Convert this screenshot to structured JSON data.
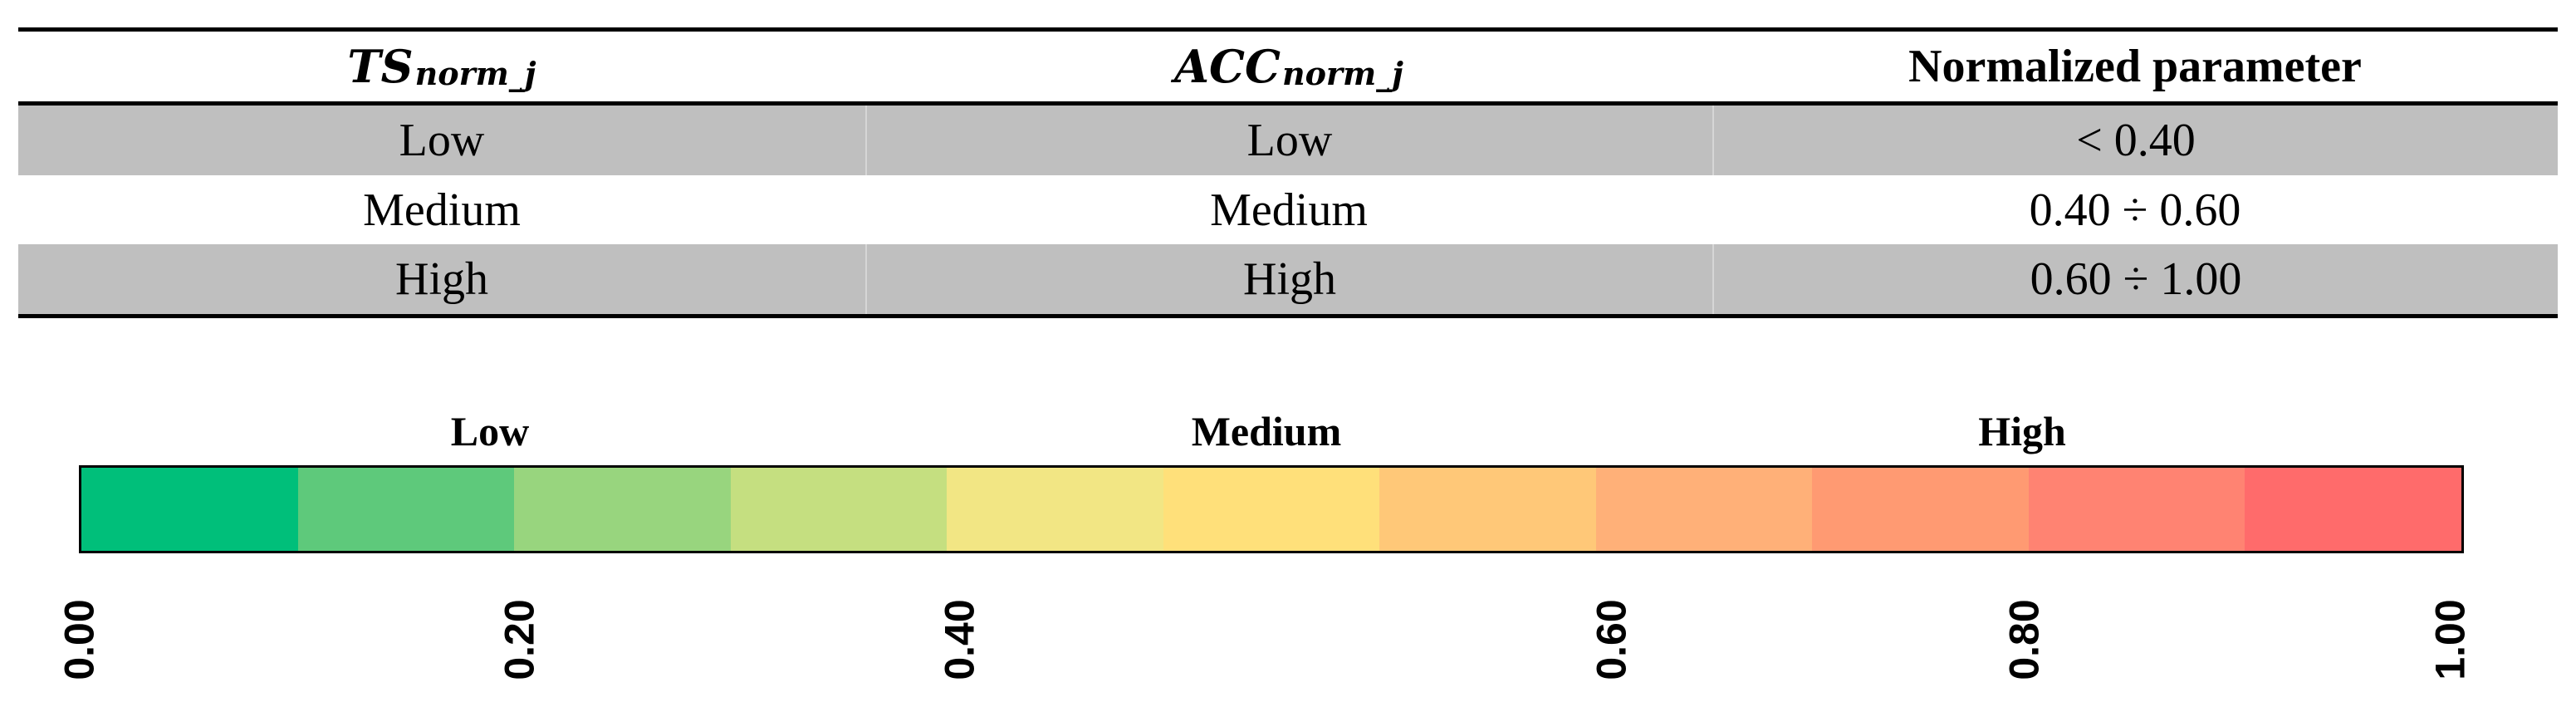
{
  "table": {
    "headers": [
      {
        "base": "TS",
        "sub": "norm_j"
      },
      {
        "base": "ACC",
        "sub": "norm_j"
      },
      {
        "base": "Normalized parameter",
        "sub": ""
      }
    ],
    "rows": [
      {
        "ts": "Low",
        "acc": "Low",
        "range": "< 0.40"
      },
      {
        "ts": "Medium",
        "acc": "Medium",
        "range": "0.40 ÷ 0.60"
      },
      {
        "ts": "High",
        "acc": "High",
        "range": "0.60 ÷ 1.00"
      }
    ]
  },
  "scale": {
    "bands": [
      "Low",
      "Medium",
      "High"
    ],
    "colors": [
      "#00bf7a",
      "#5ec97b",
      "#98d57e",
      "#c5df80",
      "#f2e684",
      "#ffe07a",
      "#ffc878",
      "#ffb078",
      "#ff9a72",
      "#ff8372",
      "#ff6b6b"
    ],
    "ticks": [
      "0.00",
      "0.20",
      "0.40",
      "0.60",
      "0.80",
      "1.00"
    ],
    "tick_values": [
      0.0,
      0.2,
      0.4,
      0.6,
      0.8,
      1.0
    ]
  }
}
